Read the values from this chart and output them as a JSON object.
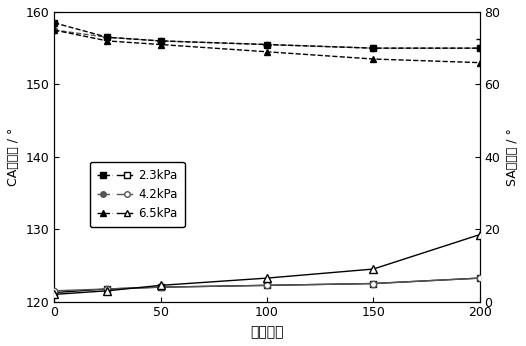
{
  "x": [
    0,
    25,
    50,
    100,
    150,
    200
  ],
  "ca_23": [
    158.5,
    156.5,
    156.0,
    155.5,
    155.0,
    155.0
  ],
  "ca_42": [
    157.5,
    156.5,
    156.0,
    155.5,
    155.0,
    155.0
  ],
  "ca_65": [
    157.5,
    156.0,
    155.5,
    154.5,
    153.5,
    153.0
  ],
  "sa_23": [
    2.5,
    3.5,
    4.0,
    4.5,
    5.0,
    6.5
  ],
  "sa_42": [
    3.0,
    3.5,
    4.0,
    4.5,
    5.0,
    6.5
  ],
  "sa_65": [
    2.0,
    3.0,
    4.5,
    6.5,
    9.0,
    18.5
  ],
  "ca_23_err_lo": [
    0.0,
    0.0,
    0.0,
    0.0,
    0.0,
    0.0
  ],
  "ca_23_err_hi": [
    0.0,
    0.0,
    0.0,
    0.0,
    0.0,
    1.2
  ],
  "xlabel": "摩擦循环",
  "ylabel_left": "CA十六烷 / °",
  "ylabel_right": "SA十六烷 / °",
  "xlim": [
    0,
    200
  ],
  "ylim_left": [
    120,
    160
  ],
  "ylim_right": [
    0,
    80
  ],
  "xticks": [
    0,
    50,
    100,
    150,
    200
  ],
  "yticks_left": [
    120,
    130,
    140,
    150,
    160
  ],
  "yticks_right": [
    0,
    20,
    40,
    60,
    80
  ],
  "legend_labels": [
    "2.3kPa",
    "4.2kPa",
    "6.5kPa"
  ],
  "color_dark": "#000000",
  "color_mid": "#555555",
  "background_color": "#ffffff"
}
